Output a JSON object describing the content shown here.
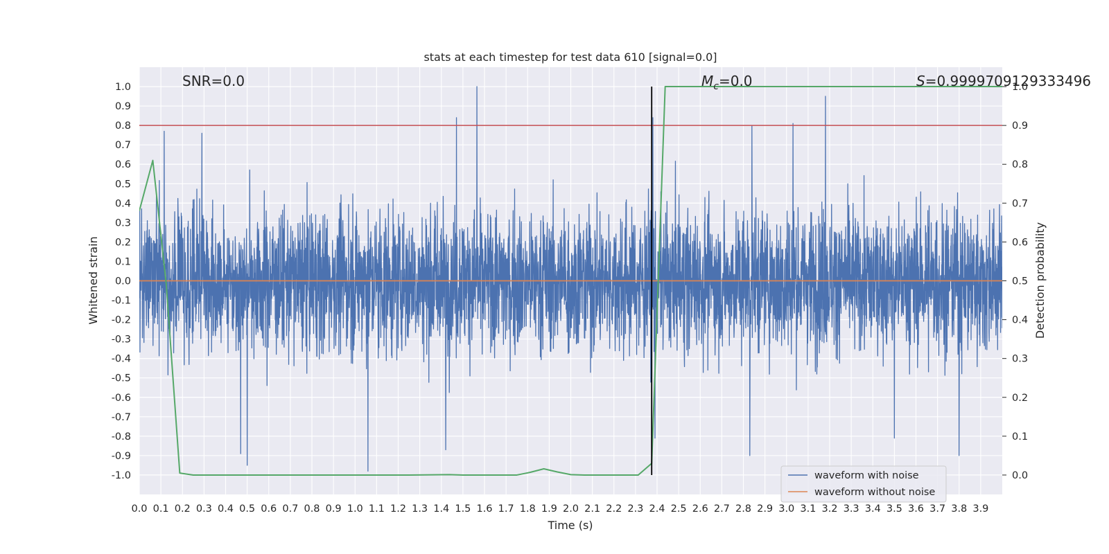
{
  "chart_data": {
    "type": "line",
    "title": "stats at each timestep for test data 610 [signal=0.0]",
    "xlabel": "Time (s)",
    "ylabel": "Whitened strain",
    "y2label": "Detection probability",
    "xlim": [
      0.0,
      4.0
    ],
    "ylim": [
      -1.1,
      1.1
    ],
    "y2lim": [
      -0.05,
      1.05
    ],
    "x_ticks": [
      "0.0",
      "0.1",
      "0.2",
      "0.3",
      "0.4",
      "0.5",
      "0.6",
      "0.7",
      "0.8",
      "0.9",
      "1.0",
      "1.1",
      "1.2",
      "1.3",
      "1.4",
      "1.5",
      "1.6",
      "1.7",
      "1.8",
      "1.9",
      "2.0",
      "2.1",
      "2.2",
      "2.3",
      "2.4",
      "2.5",
      "2.6",
      "2.7",
      "2.8",
      "2.9",
      "3.0",
      "3.1",
      "3.2",
      "3.3",
      "3.4",
      "3.5",
      "3.6",
      "3.7",
      "3.8",
      "3.9"
    ],
    "y_ticks": [
      "1.0",
      "0.9",
      "0.8",
      "0.7",
      "0.6",
      "0.5",
      "0.4",
      "0.3",
      "0.2",
      "0.1",
      "0.0",
      "-0.1",
      "-0.2",
      "-0.3",
      "-0.4",
      "-0.5",
      "-0.6",
      "-0.7",
      "-0.8",
      "-0.9",
      "-1.0"
    ],
    "y2_ticks": [
      "1.0",
      "0.9",
      "0.8",
      "0.7",
      "0.6",
      "0.5",
      "0.4",
      "0.3",
      "0.2",
      "0.1",
      "0.0"
    ],
    "annotations": {
      "snr": "SNR=0.0",
      "mc_symbol": "M",
      "mc_sub": "c",
      "mc_value": "=0.0",
      "score_symbol": "S",
      "score_value": "=0.9999709129333496"
    },
    "threshold_line": {
      "axis": "y2",
      "value": 0.9,
      "color": "#c44e52"
    },
    "event_marker": {
      "x": 2.375,
      "color": "#000000"
    },
    "legend": {
      "position": "lower right",
      "entries": [
        {
          "label": "waveform with noise",
          "color": "#4c72b0"
        },
        {
          "label": "waveform without noise",
          "color": "#dd8452"
        }
      ]
    },
    "series": [
      {
        "name": "waveform with noise",
        "axis": "y",
        "color": "#4c72b0",
        "style": "dense-noise",
        "x_range": [
          0.0,
          4.0
        ],
        "approx_std": 0.25,
        "peaks": [
          {
            "x": 1.565,
            "y": 1.0
          },
          {
            "x": 1.47,
            "y": 0.84
          },
          {
            "x": 3.18,
            "y": 0.95
          },
          {
            "x": 3.03,
            "y": 0.81
          },
          {
            "x": 2.38,
            "y": 0.84
          },
          {
            "x": 0.115,
            "y": 0.77
          },
          {
            "x": 0.29,
            "y": 0.76
          },
          {
            "x": 2.84,
            "y": 0.8
          },
          {
            "x": 1.06,
            "y": -0.98
          },
          {
            "x": 0.5,
            "y": -0.95
          },
          {
            "x": 3.8,
            "y": -0.9
          },
          {
            "x": 2.83,
            "y": -0.9
          },
          {
            "x": 0.47,
            "y": -0.89
          },
          {
            "x": 1.42,
            "y": -0.87
          },
          {
            "x": 2.39,
            "y": -0.81
          },
          {
            "x": 3.5,
            "y": -0.81
          }
        ]
      },
      {
        "name": "waveform without noise",
        "axis": "y",
        "color": "#dd8452",
        "x": [
          0.0,
          4.0
        ],
        "y": [
          0.0,
          0.0
        ]
      },
      {
        "name": "detection probability",
        "axis": "y2",
        "color": "#55a868",
        "x": [
          0.0,
          0.0625,
          0.125,
          0.1875,
          0.25,
          0.3125,
          0.375,
          0.4375,
          0.5,
          0.75,
          1.0,
          1.25,
          1.4375,
          1.5,
          1.75,
          1.8125,
          1.875,
          1.9375,
          2.0,
          2.0625,
          2.125,
          2.1875,
          2.25,
          2.3125,
          2.375,
          2.4375,
          2.5,
          2.75,
          3.0,
          3.25,
          3.5,
          3.75,
          4.0
        ],
        "y": [
          0.68,
          0.81,
          0.49,
          0.005,
          0.0,
          0.0,
          0.0,
          0.0,
          0.0,
          0.0,
          0.0,
          0.0,
          0.001,
          0.0,
          0.0,
          0.007,
          0.016,
          0.008,
          0.001,
          0.0,
          0.0,
          0.0,
          0.0,
          0.0,
          0.03,
          1.0,
          1.0,
          1.0,
          1.0,
          1.0,
          1.0,
          1.0,
          1.0
        ]
      }
    ]
  }
}
